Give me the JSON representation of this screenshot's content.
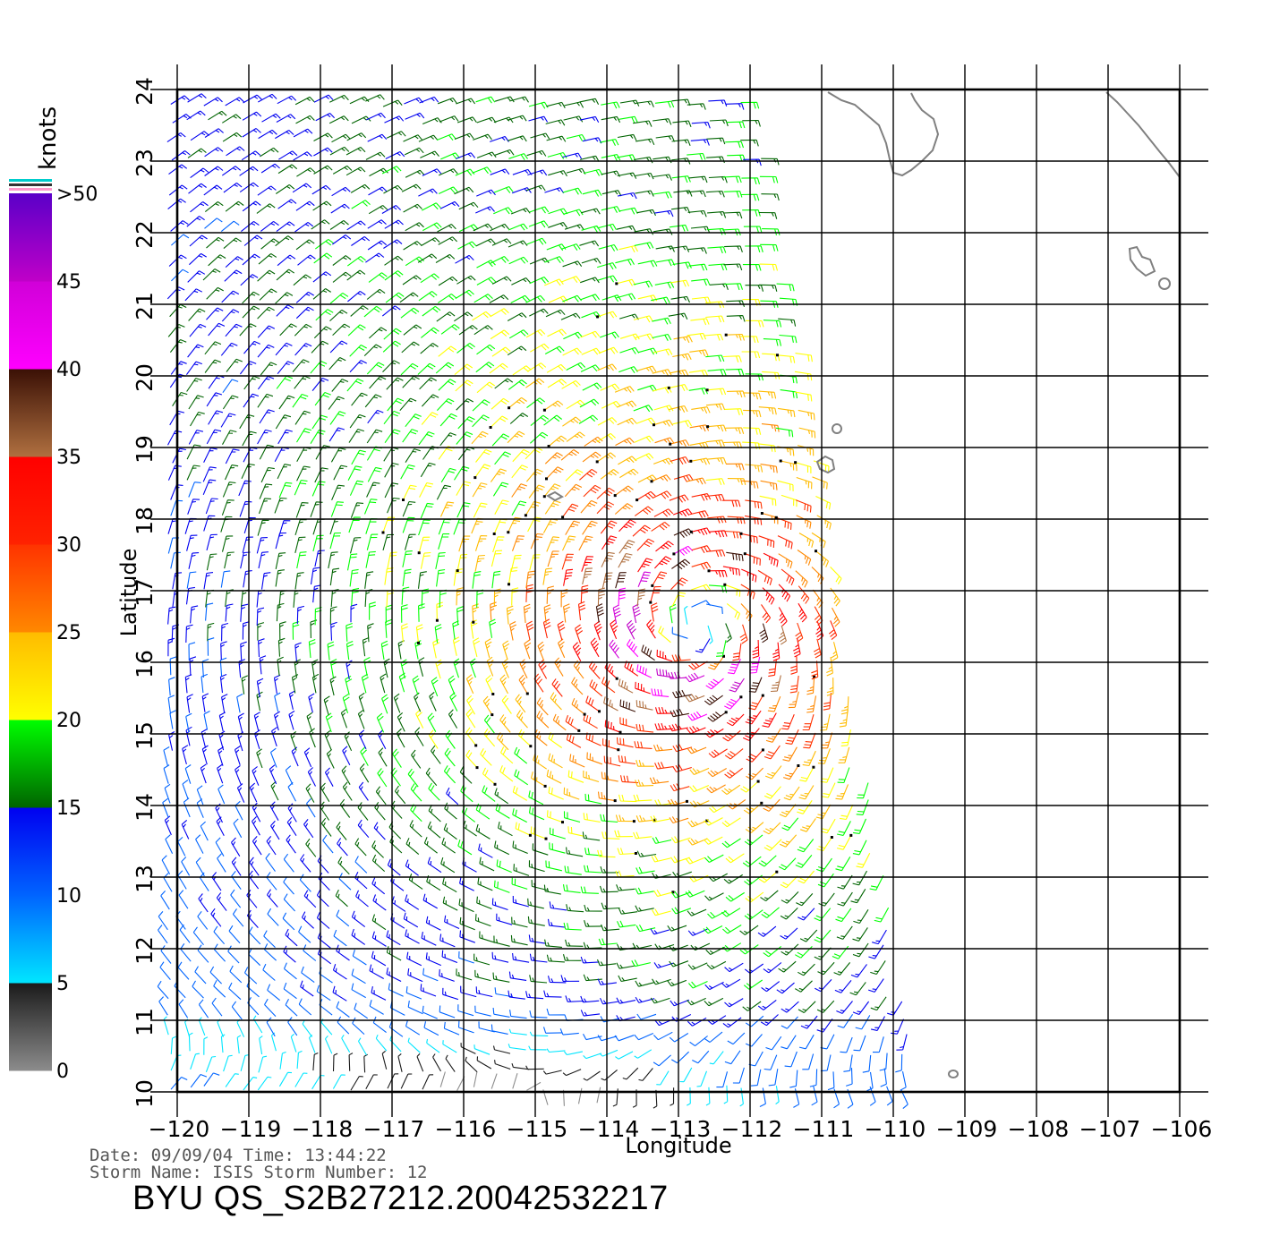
{
  "map": {
    "x_axis": {
      "label": "Longitude",
      "ticks": [
        "-120",
        "-119",
        "-118",
        "-117",
        "-116",
        "-115",
        "-114",
        "-113",
        "-112",
        "-111",
        "-110",
        "-109",
        "-108",
        "-107",
        "-106"
      ]
    },
    "y_axis": {
      "label": "Latitude",
      "ticks": [
        "10",
        "11",
        "12",
        "13",
        "14",
        "15",
        "16",
        "17",
        "18",
        "19",
        "20",
        "21",
        "22",
        "23",
        "24"
      ]
    },
    "colorbar": {
      "unit": "knots",
      "labels": [
        "0",
        "5",
        "10",
        "15",
        "20",
        "25",
        "30",
        "35",
        "40",
        "45",
        ">50"
      ],
      "segments": [
        {
          "from": 0,
          "to": 5,
          "colors": [
            "#8c8c8c",
            "#1a1a1a"
          ]
        },
        {
          "from": 5,
          "to": 10,
          "colors": [
            "#00e6ff",
            "#0064ff"
          ]
        },
        {
          "from": 10,
          "to": 15,
          "colors": [
            "#0064ff",
            "#0000f0"
          ]
        },
        {
          "from": 15,
          "to": 20,
          "colors": [
            "#006400",
            "#00ff00"
          ]
        },
        {
          "from": 20,
          "to": 25,
          "colors": [
            "#ffff00",
            "#ffbb00"
          ]
        },
        {
          "from": 25,
          "to": 30,
          "colors": [
            "#ff8800",
            "#ff3300"
          ]
        },
        {
          "from": 30,
          "to": 35,
          "colors": [
            "#ff2200",
            "#ff0000"
          ]
        },
        {
          "from": 35,
          "to": 40,
          "colors": [
            "#b07040",
            "#3a1005"
          ]
        },
        {
          "from": 40,
          "to": 45,
          "colors": [
            "#ff00ff",
            "#d000d8"
          ]
        },
        {
          "from": 45,
          "to": 50,
          "colors": [
            "#c000c8",
            "#5a00c8"
          ]
        }
      ]
    },
    "storm_center": {
      "lon": -112.7,
      "lat": 16.6
    },
    "swath": {
      "lon_range": [
        -120.1,
        -110.6
      ],
      "lat_range": [
        10.0,
        24.0
      ]
    },
    "land_color": "#808080"
  },
  "info": {
    "date_line": "Date: 09/09/04   Time: 13:44:22",
    "storm_line": "Storm  Name: ISIS   Storm  Number: 12",
    "product": "BYU  QS_S2B27212.20042532217"
  }
}
